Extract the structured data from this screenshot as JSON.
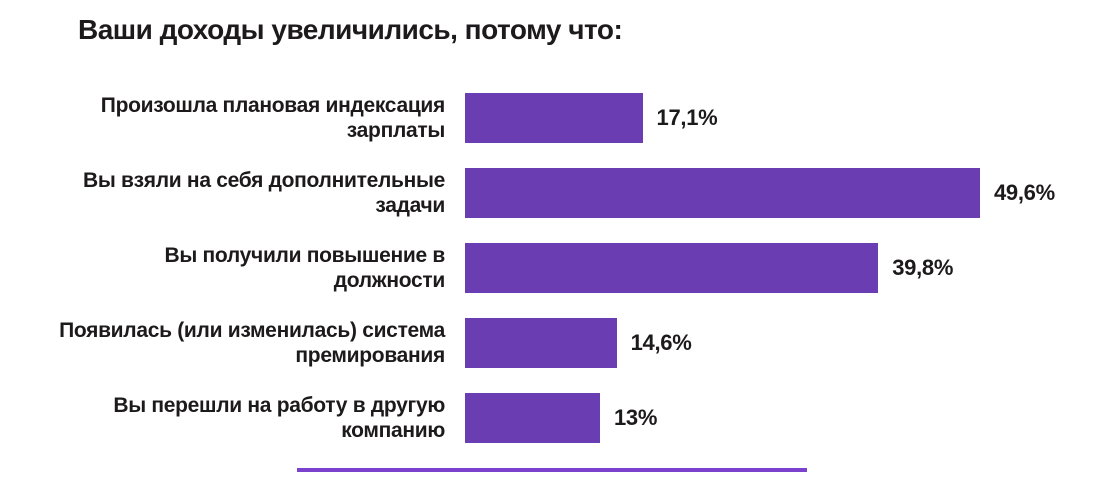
{
  "chart_data": {
    "type": "bar",
    "orientation": "horizontal",
    "title": "Ваши доходы увеличились, потому что:",
    "categories": [
      "Произошла плановая индексация зарплаты",
      "Вы взяли на себя дополнительные задачи",
      "Вы получили повышение в должности",
      "Появилась (или изменилась) система премирования",
      "Вы перешли на работу в другую компанию"
    ],
    "values": [
      17.1,
      49.6,
      39.8,
      14.6,
      13
    ],
    "value_labels": [
      "17,1%",
      "49,6%",
      "39,8%",
      "14,6%",
      "13%"
    ],
    "xlabel": "",
    "ylabel": "",
    "xlim": [
      0,
      49.6
    ],
    "grid": false,
    "legend": false,
    "bar_color": "#6a3db3",
    "text_color": "#1d1a1c",
    "background_color": "#ffffff",
    "divider_color": "#7b42cf"
  }
}
